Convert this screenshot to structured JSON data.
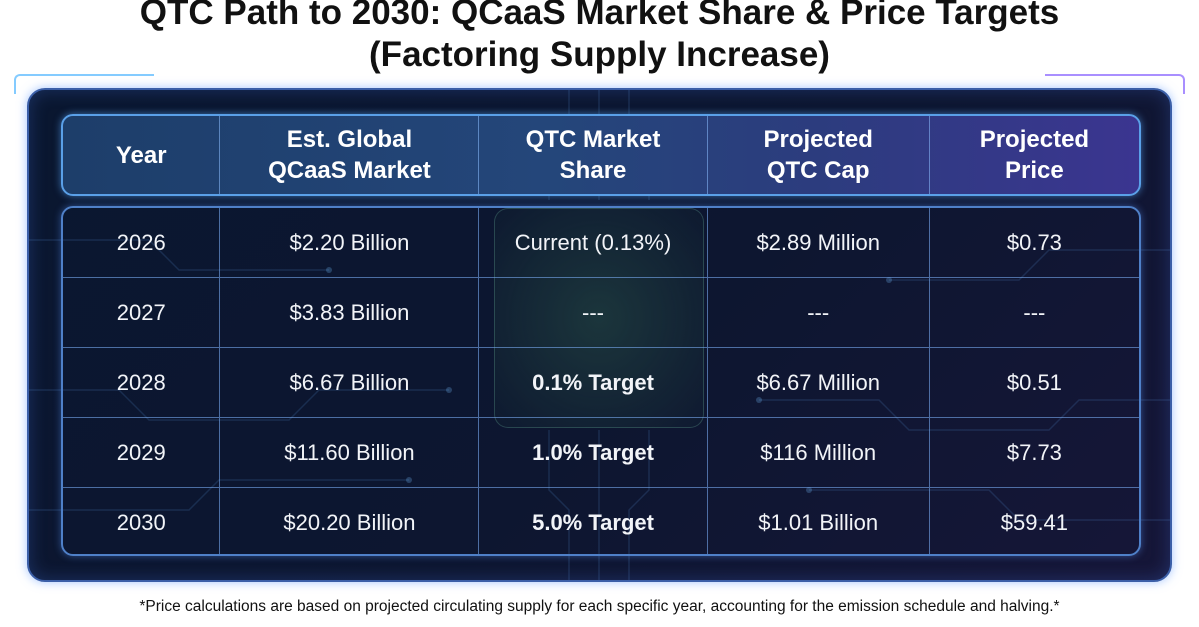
{
  "chart_data": {
    "type": "table",
    "title_lines": [
      "QTC Path to 2030: QCaaS Market Share & Price Targets",
      "(Factoring Supply Increase)"
    ],
    "columns": [
      [
        "Year"
      ],
      [
        "Est. Global",
        "QCaaS Market"
      ],
      [
        "QTC Market",
        "Share"
      ],
      [
        "Projected",
        "QTC Cap"
      ],
      [
        "Projected",
        "Price"
      ]
    ],
    "rows": [
      {
        "year": "2026",
        "market": "$2.20 Billion",
        "share": "Current (0.13%)",
        "cap": "$2.89 Million",
        "price": "$0.73",
        "share_bold": false
      },
      {
        "year": "2027",
        "market": "$3.83 Billion",
        "share": "---",
        "cap": "---",
        "price": "---",
        "share_bold": false
      },
      {
        "year": "2028",
        "market": "$6.67 Billion",
        "share": "0.1% Target",
        "cap": "$6.67 Million",
        "price": "$0.51",
        "share_bold": true
      },
      {
        "year": "2029",
        "market": "$11.60 Billion",
        "share": "1.0% Target",
        "cap": "$116 Million",
        "price": "$7.73",
        "share_bold": true
      },
      {
        "year": "2030",
        "market": "$20.20 Billion",
        "share": "5.0% Target",
        "cap": "$1.01 Billion",
        "price": "$59.41",
        "share_bold": true
      }
    ],
    "footnote": "*Price calculations are based on projected circulating supply for each specific year, accounting for the emission schedule and halving.*"
  }
}
